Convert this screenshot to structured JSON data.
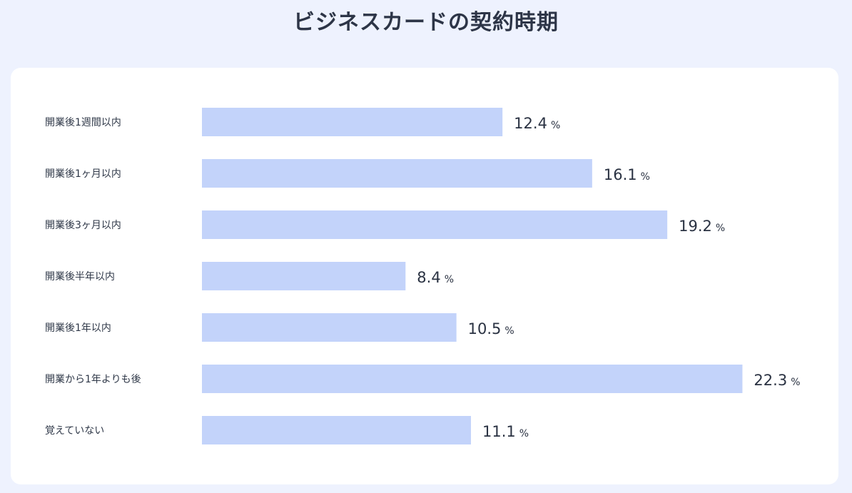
{
  "chart_data": {
    "type": "bar",
    "orientation": "horizontal",
    "title": "ビジネスカードの契約時期",
    "categories": [
      "開業後1週間以内",
      "開業後1ヶ月以内",
      "開業後3ヶ月以内",
      "開業後半年以内",
      "開業後1年以内",
      "開業から1年よりも後",
      "覚えていない"
    ],
    "values": [
      12.4,
      16.1,
      19.2,
      8.4,
      10.5,
      22.3,
      11.1
    ],
    "unit": "%",
    "xlim": [
      0,
      23.2
    ],
    "grid": false,
    "legend": "none"
  },
  "colors": {
    "bar": "#c3d3fa",
    "background": "#eef2fe",
    "card": "#ffffff",
    "text": "#2b3444"
  }
}
